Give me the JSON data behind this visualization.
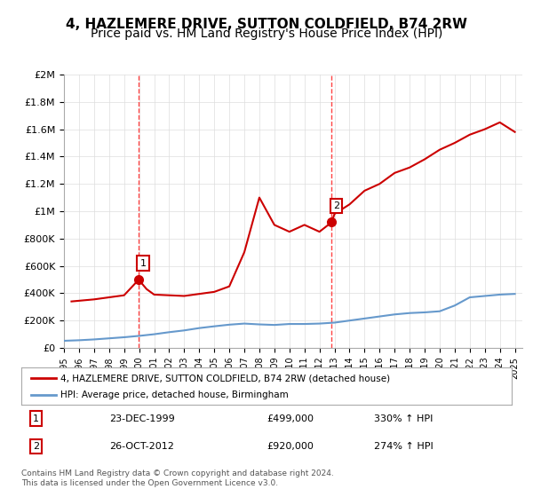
{
  "title": "4, HAZLEMERE DRIVE, SUTTON COLDFIELD, B74 2RW",
  "subtitle": "Price paid vs. HM Land Registry's House Price Index (HPI)",
  "background_color": "#ffffff",
  "ylim": [
    0,
    2000000
  ],
  "yticks": [
    0,
    200000,
    400000,
    600000,
    800000,
    1000000,
    1200000,
    1400000,
    1600000,
    1800000,
    2000000
  ],
  "ytick_labels": [
    "£0",
    "£200K",
    "£400K",
    "£600K",
    "£800K",
    "£1M",
    "£1.2M",
    "£1.4M",
    "£1.6M",
    "£1.8M",
    "£2M"
  ],
  "xlim_start": 1995.0,
  "xlim_end": 2025.5,
  "vline1_x": 1999.97,
  "vline2_x": 2012.82,
  "point1_x": 1999.97,
  "point1_y": 499000,
  "point2_x": 2012.82,
  "point2_y": 920000,
  "point1_label": "1",
  "point2_label": "2",
  "red_line_color": "#cc0000",
  "blue_line_color": "#6699cc",
  "vline_color": "#ff4444",
  "legend_label_red": "4, HAZLEMERE DRIVE, SUTTON COLDFIELD, B74 2RW (detached house)",
  "legend_label_blue": "HPI: Average price, detached house, Birmingham",
  "table_rows": [
    [
      "1",
      "23-DEC-1999",
      "£499,000",
      "330% ↑ HPI"
    ],
    [
      "2",
      "26-OCT-2012",
      "£920,000",
      "274% ↑ HPI"
    ]
  ],
  "footnote": "Contains HM Land Registry data © Crown copyright and database right 2024.\nThis data is licensed under the Open Government Licence v3.0.",
  "title_fontsize": 11,
  "subtitle_fontsize": 10,
  "axis_fontsize": 8,
  "hpi_years": [
    1995,
    1996,
    1997,
    1998,
    1999,
    2000,
    2001,
    2002,
    2003,
    2004,
    2005,
    2006,
    2007,
    2008,
    2009,
    2010,
    2011,
    2012,
    2013,
    2014,
    2015,
    2016,
    2017,
    2018,
    2019,
    2020,
    2021,
    2022,
    2023,
    2024,
    2025
  ],
  "hpi_values": [
    52000,
    56000,
    62000,
    70000,
    78000,
    88000,
    100000,
    115000,
    128000,
    145000,
    158000,
    170000,
    178000,
    172000,
    168000,
    175000,
    175000,
    178000,
    185000,
    200000,
    215000,
    230000,
    245000,
    255000,
    260000,
    268000,
    310000,
    370000,
    380000,
    390000,
    395000
  ],
  "red_years": [
    1995.5,
    1996,
    1997,
    1998,
    1999,
    1999.97,
    2000.5,
    2001,
    2002,
    2003,
    2004,
    2005,
    2006,
    2007,
    2008,
    2009,
    2010,
    2011,
    2012,
    2012.82,
    2013,
    2014,
    2015,
    2016,
    2017,
    2018,
    2019,
    2020,
    2021,
    2022,
    2023,
    2024,
    2025
  ],
  "red_values": [
    340000,
    345000,
    355000,
    370000,
    385000,
    499000,
    430000,
    390000,
    385000,
    380000,
    395000,
    410000,
    450000,
    700000,
    1100000,
    900000,
    850000,
    900000,
    850000,
    920000,
    980000,
    1050000,
    1150000,
    1200000,
    1280000,
    1320000,
    1380000,
    1450000,
    1500000,
    1560000,
    1600000,
    1650000,
    1580000
  ]
}
